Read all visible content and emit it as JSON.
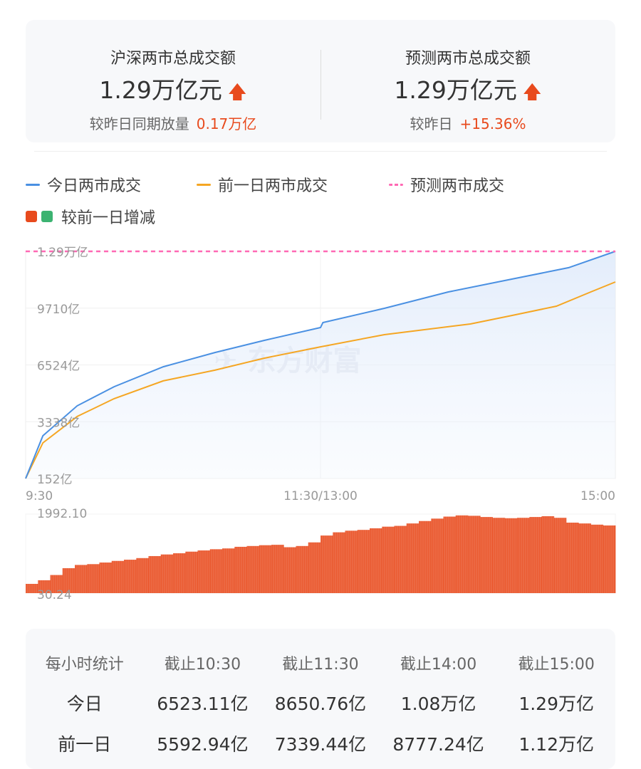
{
  "summary": {
    "total": {
      "title": "沪深两市总成交额",
      "value": "1.29万亿元",
      "compare_label": "较昨日同期放量",
      "compare_value": "0.17万亿"
    },
    "forecast": {
      "title": "预测两市总成交额",
      "value": "1.29万亿元",
      "compare_label": "较昨日",
      "compare_value": "+15.36%"
    },
    "arrow_icon": "arrow-up-icon"
  },
  "legend": {
    "today": "今日两市成交",
    "yesterday": "前一日两市成交",
    "forecast": "预测两市成交",
    "diff": "较前一日增减"
  },
  "colors": {
    "today": "#4a90e2",
    "yesterday": "#f5a623",
    "forecast": "#ff69b4",
    "increase": "#e84a1d",
    "decrease": "#3cb371"
  },
  "watermark": "东方财富",
  "chart_data": [
    {
      "type": "line",
      "y_tick_labels": [
        "1.29万亿",
        "9710亿",
        "6524亿",
        "3338亿",
        "152亿"
      ],
      "y_ticks": [
        12896,
        9710,
        6524,
        3338,
        152
      ],
      "ylim": [
        152,
        12896
      ],
      "x_tick_labels": [
        "9:30",
        "11:30/13:00",
        "15:00"
      ],
      "x_unit": "trading minutes",
      "xlim": [
        0,
        240
      ],
      "forecast_value": 12896,
      "series": [
        {
          "name": "今日两市成交",
          "x": [
            0,
            7,
            21,
            36,
            56,
            77,
            97,
            120,
            121,
            146,
            172,
            198,
            221,
            240
          ],
          "values": [
            152,
            2550,
            4230,
            5300,
            6420,
            7220,
            7900,
            8620,
            8900,
            9700,
            10620,
            11340,
            11980,
            12896
          ]
        },
        {
          "name": "前一日两市成交",
          "x": [
            0,
            7,
            21,
            36,
            56,
            77,
            97,
            120,
            146,
            181,
            198,
            216,
            230,
            240
          ],
          "values": [
            152,
            2150,
            3630,
            4630,
            5630,
            6230,
            6900,
            7540,
            8220,
            8820,
            9300,
            9820,
            10620,
            11180
          ]
        }
      ]
    },
    {
      "type": "bar",
      "name": "较前一日增减",
      "y_tick_labels": [
        "1992.10",
        "30.24"
      ],
      "ylim": [
        30.24,
        1992.1
      ],
      "x_step_minutes": 5,
      "values": [
        260,
        350,
        480,
        650,
        730,
        750,
        790,
        830,
        860,
        900,
        950,
        990,
        1020,
        1060,
        1090,
        1120,
        1140,
        1180,
        1200,
        1220,
        1230,
        1170,
        1200,
        1290,
        1460,
        1540,
        1580,
        1600,
        1640,
        1680,
        1700,
        1760,
        1820,
        1880,
        1930,
        1960,
        1950,
        1920,
        1900,
        1890,
        1900,
        1920,
        1940,
        1900,
        1780,
        1760,
        1730,
        1710
      ]
    }
  ],
  "table": {
    "headers": [
      "每小时统计",
      "截止10:30",
      "截止11:30",
      "截止14:00",
      "截止15:00"
    ],
    "rows": [
      {
        "label": "今日",
        "values": [
          "6523.11亿",
          "8650.76亿",
          "1.08万亿",
          "1.29万亿"
        ]
      },
      {
        "label": "前一日",
        "values": [
          "5592.94亿",
          "7339.44亿",
          "8777.24亿",
          "1.12万亿"
        ]
      }
    ]
  }
}
